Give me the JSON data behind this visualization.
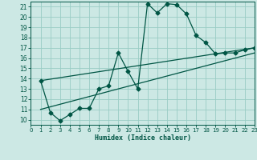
{
  "xlabel": "Humidex (Indice chaleur)",
  "bg_color": "#cce8e4",
  "grid_color": "#99ccc4",
  "line_color": "#005544",
  "xlim": [
    0,
    23
  ],
  "ylim": [
    9.5,
    21.5
  ],
  "xticks": [
    0,
    1,
    2,
    3,
    4,
    5,
    6,
    7,
    8,
    9,
    10,
    11,
    12,
    13,
    14,
    15,
    16,
    17,
    18,
    19,
    20,
    21,
    22,
    23
  ],
  "yticks": [
    10,
    11,
    12,
    13,
    14,
    15,
    16,
    17,
    18,
    19,
    20,
    21
  ],
  "line1_x": [
    1,
    2,
    3,
    4,
    5,
    6,
    7,
    8,
    9,
    10,
    11,
    12,
    13,
    14,
    15,
    16,
    17,
    18,
    19,
    20,
    21,
    22,
    23
  ],
  "line1_y": [
    13.8,
    10.7,
    9.9,
    10.5,
    11.1,
    11.1,
    13.0,
    13.3,
    16.5,
    14.7,
    13.0,
    21.3,
    20.4,
    21.3,
    21.2,
    20.3,
    18.2,
    17.5,
    16.4,
    16.5,
    16.5,
    16.8,
    17.0
  ],
  "line2_x": [
    1,
    23
  ],
  "line2_y": [
    13.8,
    17.0
  ],
  "line3_x": [
    1,
    23
  ],
  "line3_y": [
    11.0,
    16.5
  ]
}
